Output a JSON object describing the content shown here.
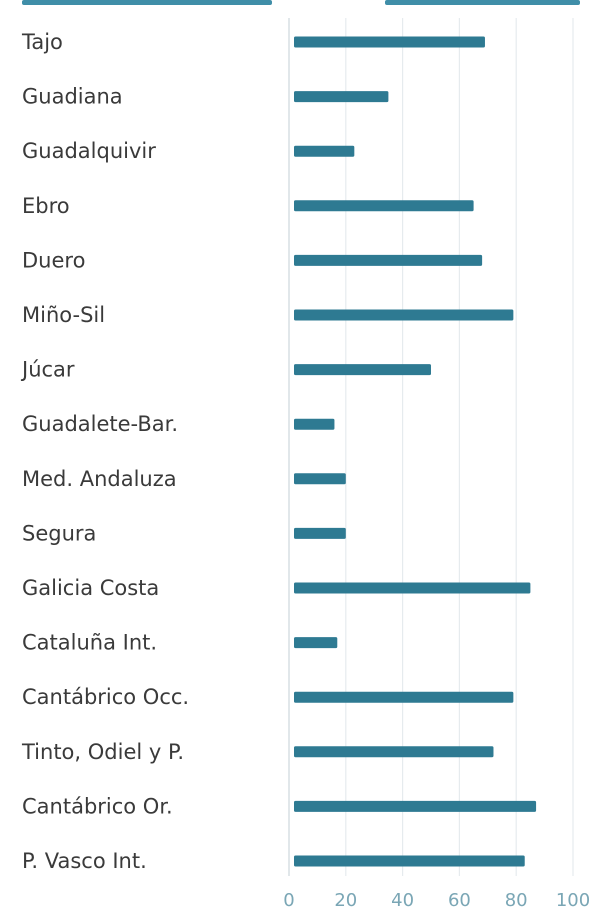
{
  "chart_data": {
    "type": "bar",
    "orientation": "horizontal",
    "categories": [
      "Tajo",
      "Guadiana",
      "Guadalquivir",
      "Ebro",
      "Duero",
      "Miño-Sil",
      "Júcar",
      "Guadalete-Bar.",
      "Med. Andaluza",
      "Segura",
      "Galicia Costa",
      "Cataluña Int.",
      "Cantábrico Occ.",
      "Tinto, Odiel y P.",
      "Cantábrico Or.",
      "P. Vasco Int."
    ],
    "values": [
      69,
      35,
      23,
      65,
      68,
      79,
      50,
      16,
      20,
      20,
      85,
      17,
      79,
      72,
      87,
      83
    ],
    "xlim": [
      0,
      100
    ],
    "xticks": [
      "0",
      "20",
      "40",
      "60",
      "80",
      "100"
    ],
    "title": "",
    "xlabel": "",
    "ylabel": "",
    "grid": "vertical",
    "legend": "none",
    "bar_color": "#2e7a92",
    "text_color": "#3a3a3a",
    "tick_color": "#7aa6b5",
    "grid_color": "#e6ebee"
  }
}
